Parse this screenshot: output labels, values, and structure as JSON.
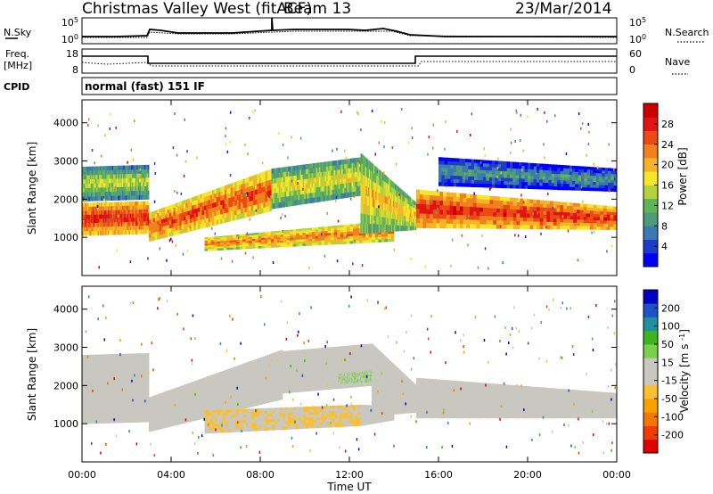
{
  "header": {
    "station": "Christmas Valley West (fitACF)",
    "beam": "Beam 13",
    "date": "23/Mar/2014"
  },
  "top_panels": {
    "nsky": {
      "label": "N.Sky",
      "ticks": [
        "10^5",
        "10^0"
      ]
    },
    "nsearch": {
      "label": "N.Search",
      "ticks": [
        "10^5",
        "10^0"
      ]
    },
    "freq": {
      "label_line1": "Freq.",
      "label_line2": "[MHz]",
      "ticks": [
        "18",
        "8"
      ]
    },
    "nave": {
      "label": "Nave",
      "ticks": [
        "60",
        "0"
      ]
    },
    "cpid": {
      "label": "CPID",
      "value": "normal (fast) 151 IF"
    }
  },
  "colors": {
    "power_scale": [
      "#0000ff",
      "#1e3cc8",
      "#3a7ab0",
      "#4e9a7a",
      "#5fb45a",
      "#b4d23c",
      "#f5e62a",
      "#f5b428",
      "#f0821e",
      "#ec4a14",
      "#e01414",
      "#cc0000"
    ],
    "velocity_scale": [
      "#e00000",
      "#f03c00",
      "#f47800",
      "#f8a000",
      "#fbc030",
      "#c8c8c0",
      "#c8c8c0",
      "#7ad048",
      "#3cb41e",
      "#2090a0",
      "#1e50c8",
      "#0000c0"
    ],
    "gray": "#c8c8c0"
  },
  "chart_data": [
    {
      "type": "heatmap",
      "name": "Power",
      "ylabel": "Slant Range [km]",
      "y_ticks": [
        1000,
        2000,
        3000,
        4000
      ],
      "ylim": [
        0,
        4600
      ],
      "colorbar": {
        "label": "Power [dB]",
        "ticks": [
          "28",
          "24",
          "20",
          "16",
          "12",
          "8",
          "4"
        ],
        "range": [
          0,
          32
        ]
      },
      "bands": [
        {
          "x": [
            0.0,
            3.0
          ],
          "y_low": [
            1050,
            1100
          ],
          "y_high": [
            1900,
            1950
          ],
          "value": 24
        },
        {
          "x": [
            0.0,
            3.0
          ],
          "y_low": [
            1950,
            2000
          ],
          "y_high": [
            2850,
            2900
          ],
          "value": 12
        },
        {
          "x": [
            3.0,
            8.5
          ],
          "y_low": [
            900,
            1700
          ],
          "y_high": [
            1650,
            2800
          ],
          "value": 22
        },
        {
          "x": [
            8.5,
            12.5
          ],
          "y_low": [
            1750,
            2100
          ],
          "y_high": [
            2800,
            3100
          ],
          "value": 14
        },
        {
          "x": [
            5.5,
            14.0
          ],
          "y_low": [
            650,
            900
          ],
          "y_high": [
            1000,
            1450
          ],
          "value": 20
        },
        {
          "x": [
            12.5,
            15.0
          ],
          "y_low": [
            1100,
            1200
          ],
          "y_high": [
            3200,
            1900
          ],
          "value": 16
        },
        {
          "x": [
            15.0,
            24.0
          ],
          "y_low": [
            1250,
            1200
          ],
          "y_high": [
            2250,
            1800
          ],
          "value": 24
        },
        {
          "x": [
            16.0,
            24.0
          ],
          "y_low": [
            2350,
            2200
          ],
          "y_high": [
            3100,
            2800
          ],
          "value": 6
        }
      ]
    },
    {
      "type": "heatmap",
      "name": "Velocity",
      "xlabel": "Time UT",
      "x_ticks": [
        "00:00",
        "04:00",
        "08:00",
        "12:00",
        "16:00",
        "20:00",
        "00:00"
      ],
      "xlim": [
        0,
        24
      ],
      "ylabel": "Slant Range [km]",
      "y_ticks": [
        1000,
        2000,
        3000,
        4000
      ],
      "ylim": [
        0,
        4600
      ],
      "colorbar": {
        "label": "Velocity [m s^-1]",
        "ticks": [
          "200",
          "100",
          "50",
          "15",
          "-15",
          "-50",
          "-100",
          "-200"
        ],
        "range": [
          -250,
          250
        ]
      },
      "bands": [
        {
          "x": [
            0.0,
            3.0
          ],
          "y_low": [
            1000,
            1050
          ],
          "y_high": [
            2800,
            2850
          ],
          "value": 0
        },
        {
          "x": [
            3.0,
            9.0
          ],
          "y_low": [
            800,
            1650
          ],
          "y_high": [
            1700,
            2950
          ],
          "value": 0
        },
        {
          "x": [
            9.0,
            13.0
          ],
          "y_low": [
            1800,
            2000
          ],
          "y_high": [
            2900,
            3100
          ],
          "value": 0
        },
        {
          "x": [
            5.5,
            12.5
          ],
          "y_low": [
            750,
            950
          ],
          "y_high": [
            1350,
            1500
          ],
          "value": -40
        },
        {
          "x": [
            12.5,
            14.0
          ],
          "y_low": [
            950,
            1100
          ],
          "y_high": [
            1500,
            1450
          ],
          "value": 30
        },
        {
          "x": [
            13.0,
            15.0
          ],
          "y_low": [
            1200,
            1300
          ],
          "y_high": [
            3100,
            2000
          ],
          "value": 30
        },
        {
          "x": [
            11.5,
            13.0
          ],
          "y_low": [
            2050,
            2100
          ],
          "y_high": [
            2300,
            2400
          ],
          "value": 40
        },
        {
          "x": [
            15.0,
            24.0
          ],
          "y_low": [
            1150,
            1150
          ],
          "y_high": [
            2200,
            1800
          ],
          "value": 0
        }
      ]
    }
  ]
}
